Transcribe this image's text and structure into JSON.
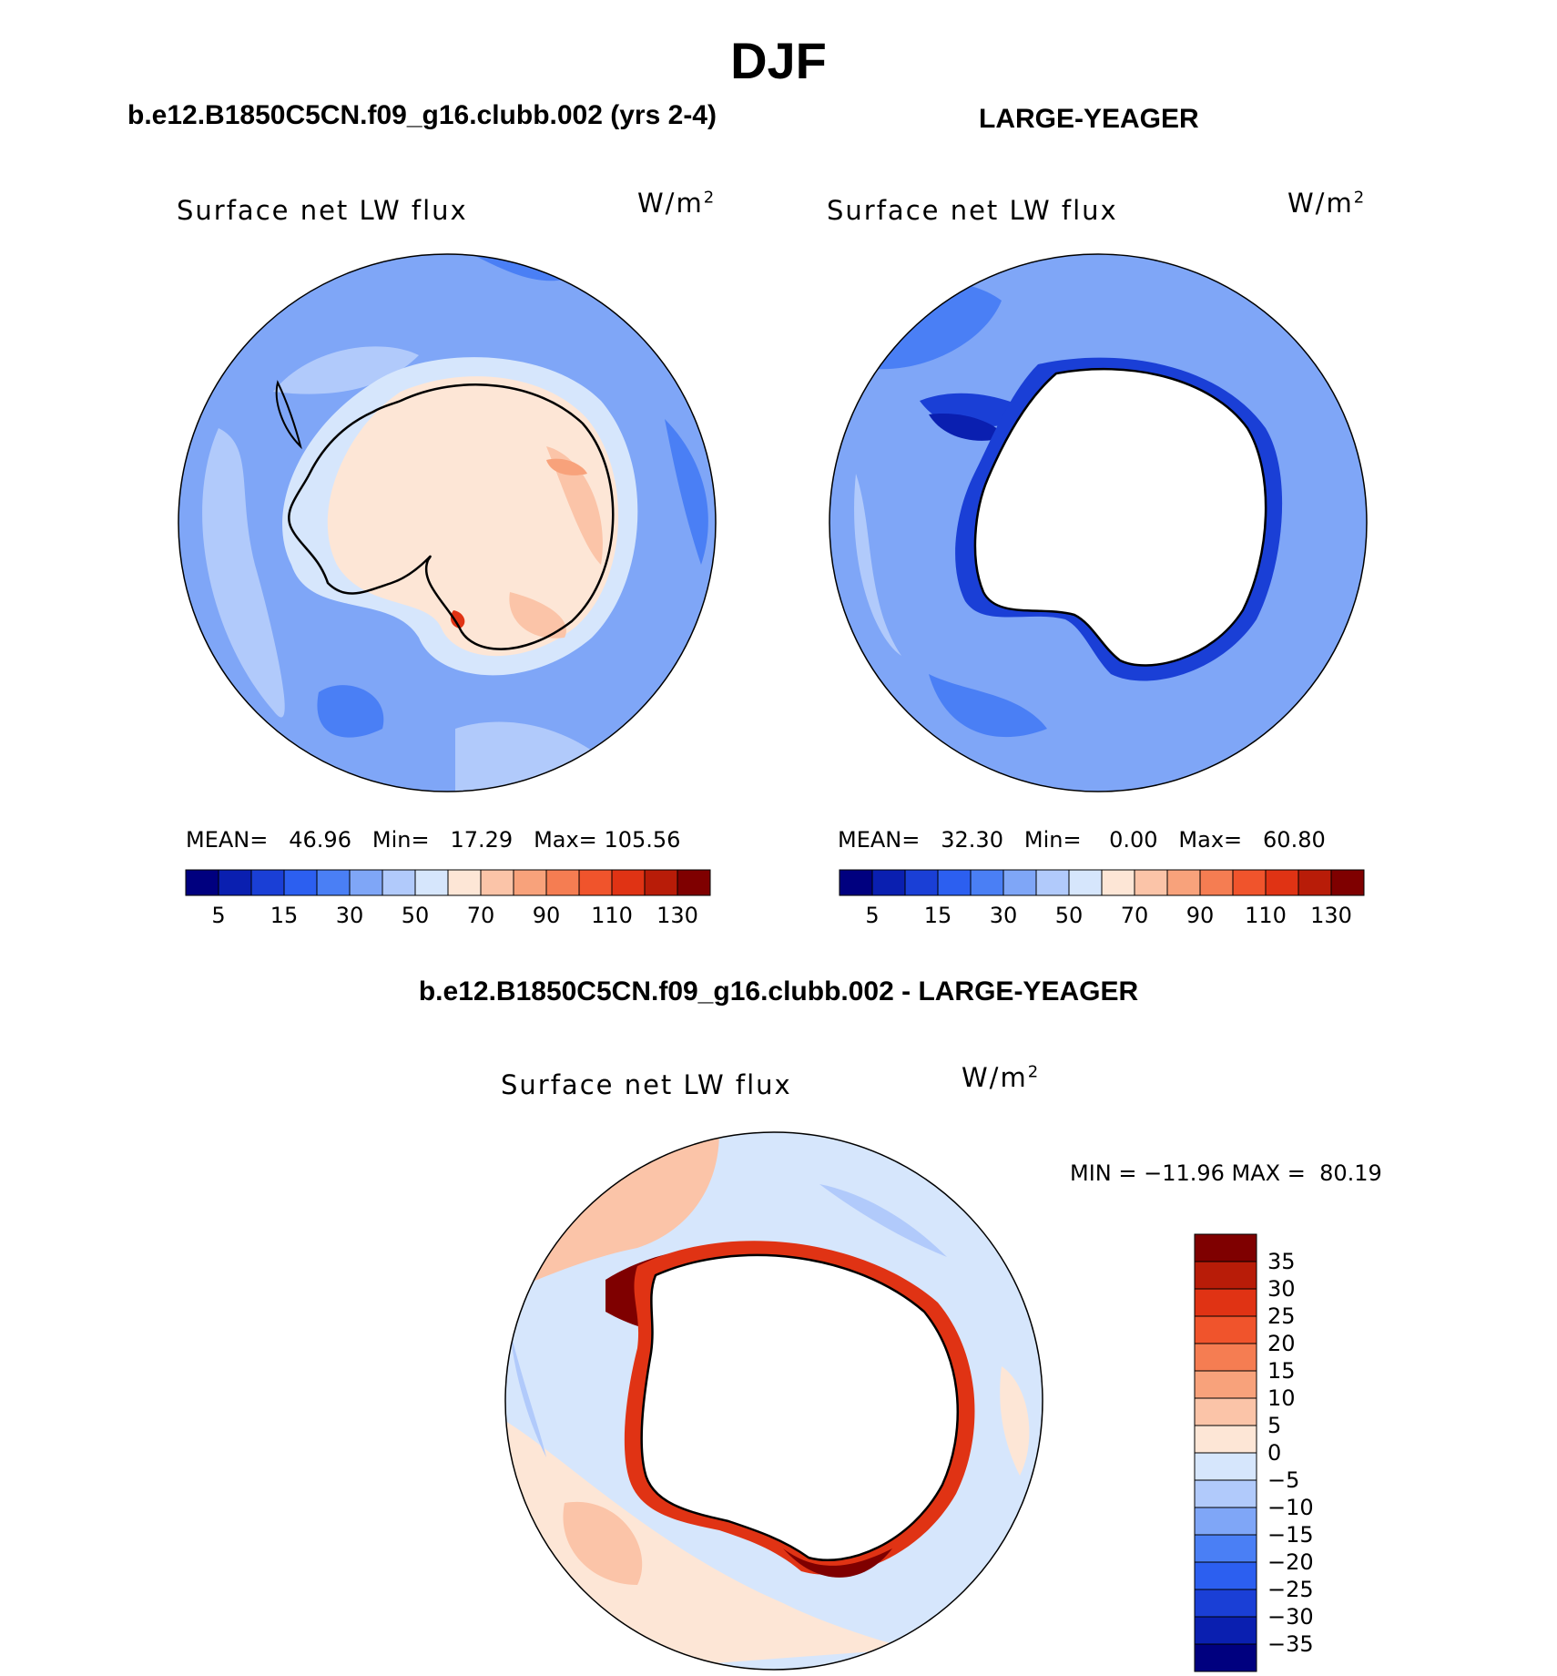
{
  "title": "DJF",
  "panels": {
    "left": {
      "case": "b.e12.B1850C5CN.f09_g16.clubb.002 (yrs 2-4)",
      "variable": "Surface net LW flux",
      "units_base": "W/m",
      "units_exp": "2",
      "mean_label": "MEAN=",
      "mean_value": "46.96",
      "min_label": "Min=",
      "min_value": "17.29",
      "max_label": "Max=",
      "max_value": "105.56"
    },
    "right": {
      "case": "LARGE-YEAGER",
      "variable": "Surface net LW flux",
      "units_base": "W/m",
      "units_exp": "2",
      "mean_label": "MEAN=",
      "mean_value": "32.30",
      "min_label": "Min=",
      "min_value": "0.00",
      "max_label": "Max=",
      "max_value": "60.80"
    },
    "diff": {
      "case": "b.e12.B1850C5CN.f09_g16.clubb.002 - LARGE-YEAGER",
      "variable": "Surface net LW flux",
      "units_base": "W/m",
      "units_exp": "2",
      "minmax_text": "MIN = −11.96 MAX =  80.19"
    }
  },
  "chart_data": [
    {
      "type": "heatmap",
      "projection": "south-polar-stereographic",
      "title": "b.e12.B1850C5CN.f09_g16.clubb.002 (yrs 2-4)",
      "variable": "Surface net LW flux",
      "units": "W/m2",
      "mean": 46.96,
      "min": 17.29,
      "max": 105.56,
      "colorbar": {
        "orientation": "horizontal",
        "tick_labels": [
          "5",
          "15",
          "30",
          "50",
          "70",
          "90",
          "110",
          "130"
        ],
        "colors": [
          "#00007f",
          "#0a1fb0",
          "#1a3fd6",
          "#2c5ff0",
          "#4a7ff5",
          "#7fa6f7",
          "#b1cafb",
          "#d6e6fc",
          "#fde6d6",
          "#fbc4a8",
          "#f8a27b",
          "#f57d52",
          "#f0542c",
          "#e03314",
          "#b81c08",
          "#7f0000"
        ]
      }
    },
    {
      "type": "heatmap",
      "projection": "south-polar-stereographic",
      "title": "LARGE-YEAGER",
      "variable": "Surface net LW flux",
      "units": "W/m2",
      "mean": 32.3,
      "min": 0.0,
      "max": 60.8,
      "colorbar": {
        "orientation": "horizontal",
        "tick_labels": [
          "5",
          "15",
          "30",
          "50",
          "70",
          "90",
          "110",
          "130"
        ],
        "colors": [
          "#00007f",
          "#0a1fb0",
          "#1a3fd6",
          "#2c5ff0",
          "#4a7ff5",
          "#7fa6f7",
          "#b1cafb",
          "#d6e6fc",
          "#fde6d6",
          "#fbc4a8",
          "#f8a27b",
          "#f57d52",
          "#f0542c",
          "#e03314",
          "#b81c08",
          "#7f0000"
        ]
      }
    },
    {
      "type": "heatmap",
      "projection": "south-polar-stereographic",
      "title": "b.e12.B1850C5CN.f09_g16.clubb.002 - LARGE-YEAGER",
      "variable": "Surface net LW flux",
      "units": "W/m2",
      "min": -11.96,
      "max": 80.19,
      "colorbar": {
        "orientation": "vertical",
        "tick_labels": [
          "35",
          "30",
          "25",
          "20",
          "15",
          "10",
          "5",
          "0",
          "−5",
          "−10",
          "−15",
          "−20",
          "−25",
          "−30",
          "−35"
        ],
        "colors": [
          "#7f0000",
          "#b81c08",
          "#e03314",
          "#f0542c",
          "#f57d52",
          "#f8a27b",
          "#fbc4a8",
          "#fde6d6",
          "#d6e6fc",
          "#b1cafb",
          "#7fa6f7",
          "#4a7ff5",
          "#2c5ff0",
          "#1a3fd6",
          "#0a1fb0",
          "#00007f"
        ]
      }
    }
  ]
}
